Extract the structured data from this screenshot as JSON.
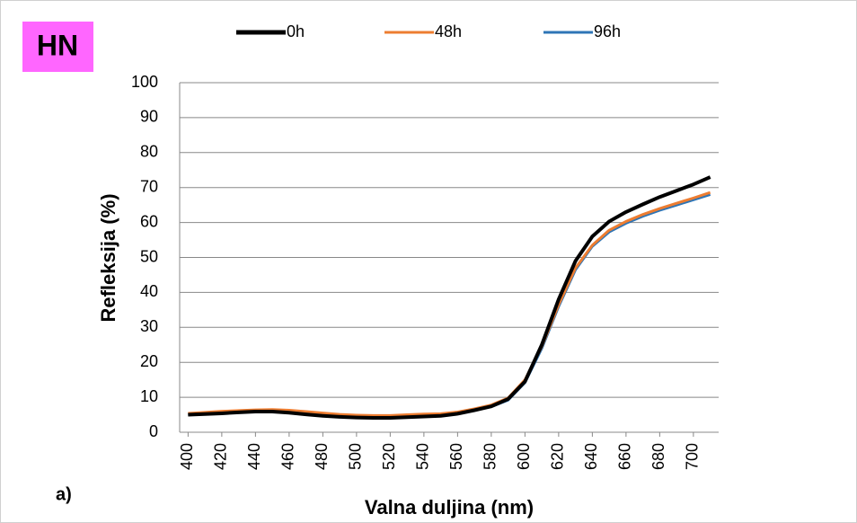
{
  "chart_data": {
    "type": "line",
    "annotations": [
      "HN",
      "a)"
    ],
    "xlabel": "Valna duljina (nm)",
    "ylabel": "Refleksija (%)",
    "x": [
      400,
      410,
      420,
      430,
      440,
      450,
      460,
      470,
      480,
      490,
      500,
      510,
      520,
      530,
      540,
      550,
      560,
      570,
      580,
      590,
      600,
      610,
      620,
      630,
      640,
      650,
      660,
      670,
      680,
      690,
      700,
      710
    ],
    "xlim": [
      395,
      715
    ],
    "xticks": [
      400,
      420,
      440,
      460,
      480,
      500,
      520,
      540,
      560,
      580,
      600,
      620,
      640,
      660,
      680,
      700
    ],
    "ylim": [
      0,
      100
    ],
    "yticks": [
      0,
      10,
      20,
      30,
      40,
      50,
      60,
      70,
      80,
      90,
      100
    ],
    "grid": true,
    "legend": "top",
    "series": [
      {
        "name": "0h",
        "color": "#000000",
        "values": [
          5,
          5.2,
          5.4,
          5.7,
          5.9,
          5.9,
          5.6,
          5.1,
          4.7,
          4.4,
          4.2,
          4.1,
          4.1,
          4.3,
          4.5,
          4.7,
          5.3,
          6.3,
          7.4,
          9.5,
          14.5,
          25,
          38,
          49,
          56,
          60.3,
          63,
          65.2,
          67.3,
          69.1,
          70.9,
          73
        ]
      },
      {
        "name": "48h",
        "color": "#ed7d31",
        "values": [
          5.4,
          5.7,
          6,
          6.2,
          6.4,
          6.5,
          6.3,
          5.9,
          5.5,
          5.1,
          4.9,
          4.8,
          4.8,
          5,
          5.2,
          5.3,
          5.8,
          6.7,
          7.8,
          9.8,
          15,
          24.5,
          36.5,
          47,
          53.5,
          57.8,
          60.3,
          62.3,
          64,
          65.5,
          67,
          68.6
        ]
      },
      {
        "name": "96h",
        "color": "#2e75b6",
        "values": [
          5,
          5.3,
          5.6,
          5.9,
          6.1,
          6.2,
          6,
          5.6,
          5.2,
          4.9,
          4.6,
          4.5,
          4.5,
          4.7,
          4.9,
          5,
          5.5,
          6.4,
          7.3,
          9.2,
          14.2,
          24,
          36,
          46.5,
          53.2,
          57.3,
          59.8,
          61.8,
          63.5,
          65,
          66.5,
          68
        ]
      }
    ]
  }
}
